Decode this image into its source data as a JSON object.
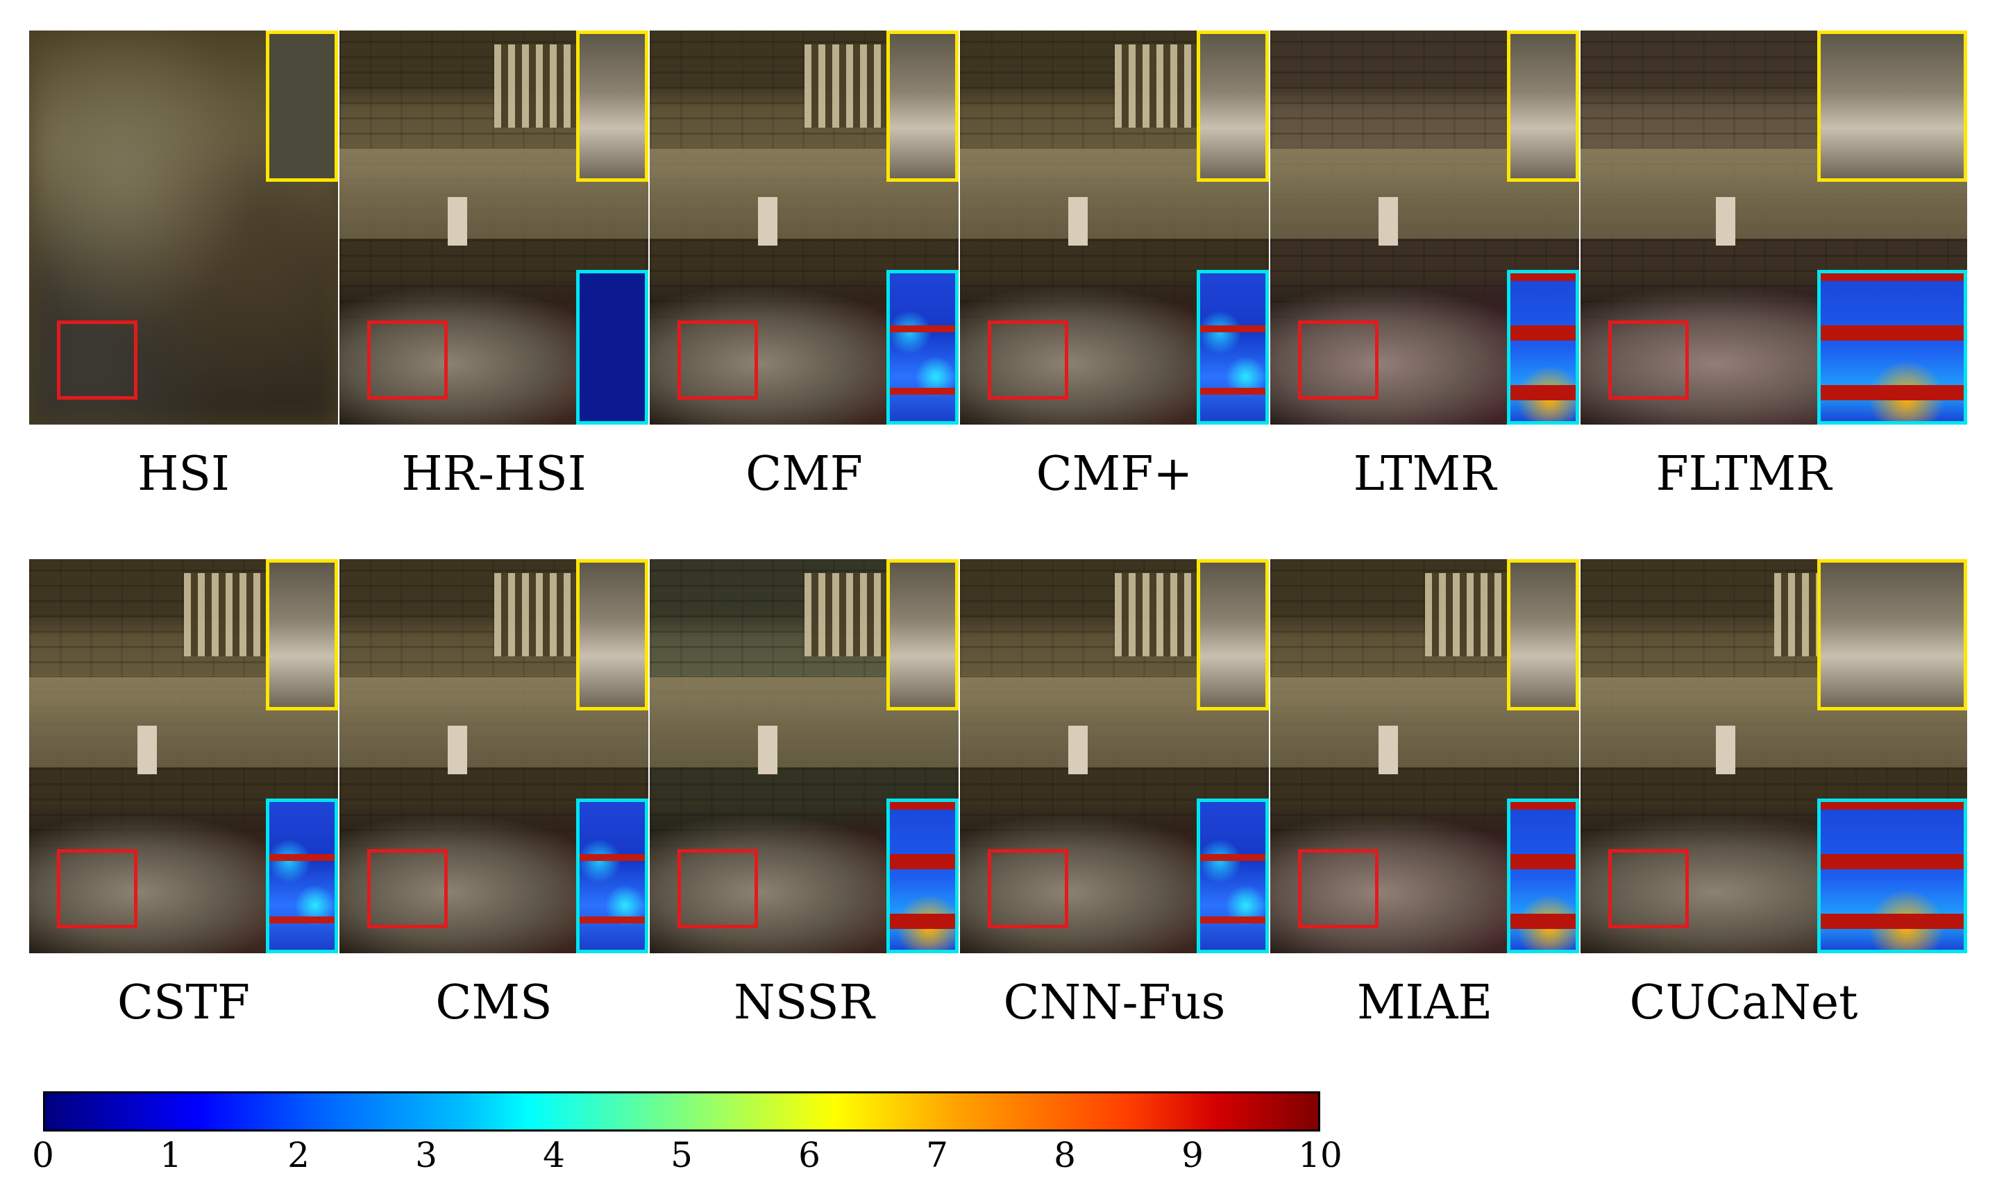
{
  "figure": {
    "row1_labels": [
      "HSI",
      "HR-HSI",
      "CMF",
      "CMF+",
      "LTMR",
      "FLTMR"
    ],
    "row2_labels": [
      "CSTF",
      "CMS",
      "NSSR",
      "CNN-Fus",
      "MIAE",
      "CUCaNet"
    ],
    "colorbar": {
      "ticks": [
        "0",
        "1",
        "2",
        "3",
        "4",
        "5",
        "6",
        "7",
        "8",
        "9",
        "10"
      ],
      "min": 0,
      "max": 10,
      "colormap": "jet"
    },
    "colors": {
      "roi_box": "#e31a1c",
      "zoom_inset": "#ffe600",
      "error_inset": "#00e5ee"
    }
  }
}
